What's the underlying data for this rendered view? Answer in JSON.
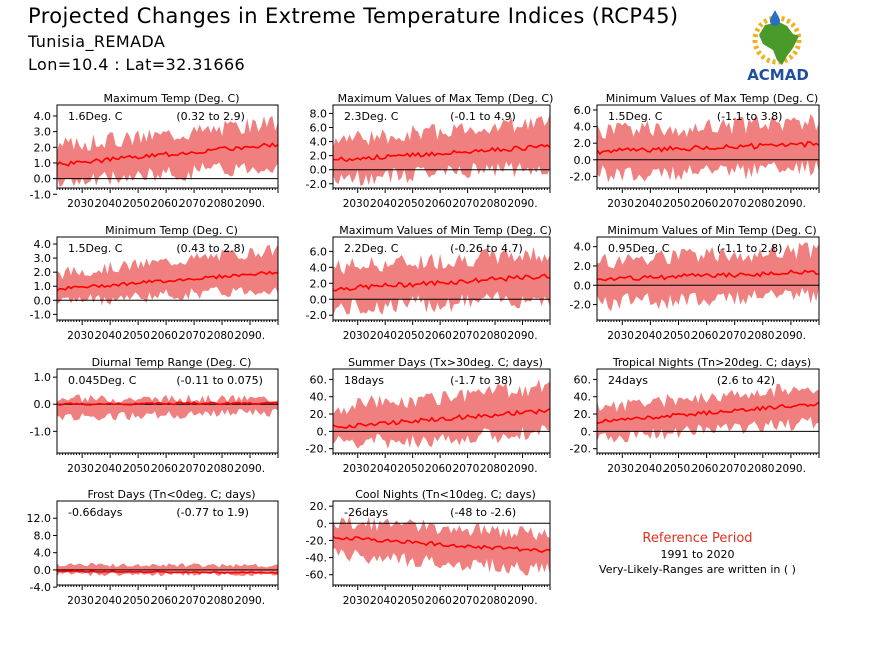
{
  "header": {
    "title": "Projected Changes in Extreme Temperature Indices (RCP45)",
    "region": "Tunisia_REMADA",
    "coords": "Lon=10.4 : Lat=32.31666"
  },
  "logo": {
    "text": "ACMAD",
    "icon": "africa-map-logo",
    "colors": {
      "map": "#4a9a2a",
      "sun": "#f0b020",
      "drop": "#2a70c0",
      "text": "#1f4fa0"
    }
  },
  "colors": {
    "band": "#f08080",
    "line": "#ff0000",
    "zero": "#000000"
  },
  "reference": {
    "title": "Reference Period",
    "period": "1991 to 2020",
    "note": "Very-Likely-Ranges are written in ( )"
  },
  "chart_data": [
    {
      "type": "area",
      "title": "Maximum Temp (Deg. C)",
      "value_label": "1.6Deg. C",
      "range_label": "(0.32 to 2.9)",
      "x_range": [
        2021,
        2100
      ],
      "x_ticks": [
        "2030.",
        "2040.",
        "2050.",
        "2060.",
        "2070.",
        "2080.",
        "2090."
      ],
      "ylim": [
        -0.6,
        4.7
      ],
      "y_ticks": [
        "4.0",
        "3.0",
        "2.0",
        "1.0",
        "0.0",
        "-1.0"
      ],
      "y_tick_values": [
        4,
        3,
        2,
        1,
        0,
        -1
      ],
      "series": [
        {
          "start": 0.9,
          "end": 2.2
        },
        {
          "band_lower_start": -0.3,
          "band_lower_end": 0.9,
          "band_upper_start": 2.1,
          "band_upper_end": 3.6
        }
      ]
    },
    {
      "type": "area",
      "title": "Maximum Values of Max Temp (Deg. C)",
      "value_label": "2.3Deg. C",
      "range_label": "(-0.1 to 4.9)",
      "x_range": [
        2021,
        2100
      ],
      "x_ticks": [
        "2030.",
        "2040.",
        "2050.",
        "2060.",
        "2070.",
        "2080.",
        "2090."
      ],
      "ylim": [
        -2.6,
        9.2
      ],
      "y_ticks": [
        "8.0",
        "6.0",
        "4.0",
        "2.0",
        "0.0",
        "-2.0"
      ],
      "y_tick_values": [
        8,
        6,
        4,
        2,
        0,
        -2
      ],
      "series": [
        {
          "start": 1.4,
          "end": 3.3
        },
        {
          "band_lower_start": -1.3,
          "band_lower_end": 0.3,
          "band_upper_start": 4.2,
          "band_upper_end": 6.8
        }
      ]
    },
    {
      "type": "area",
      "title": "Minimum Values of Max Temp (Deg. C)",
      "value_label": "1.5Deg. C",
      "range_label": "(-1.1 to 3.8)",
      "x_range": [
        2021,
        2100
      ],
      "x_ticks": [
        "2030.",
        "2040.",
        "2050.",
        "2060.",
        "2070.",
        "2080.",
        "2090."
      ],
      "ylim": [
        -3.4,
        6.6
      ],
      "y_ticks": [
        "6.0",
        "4.0",
        "2.0",
        "0.0",
        "-2.0"
      ],
      "y_tick_values": [
        6,
        4,
        2,
        0,
        -2
      ],
      "series": [
        {
          "start": 1.0,
          "end": 1.9
        },
        {
          "band_lower_start": -1.8,
          "band_lower_end": -1.0,
          "band_upper_start": 3.4,
          "band_upper_end": 4.6
        }
      ]
    },
    {
      "type": "area",
      "title": "Minimum Temp (Deg. C)",
      "value_label": "1.5Deg. C",
      "range_label": "(0.43 to 2.8)",
      "x_range": [
        2021,
        2100
      ],
      "x_ticks": [
        "2030.",
        "2040.",
        "2050.",
        "2060.",
        "2070.",
        "2080.",
        "2090."
      ],
      "ylim": [
        -1.4,
        4.5
      ],
      "y_ticks": [
        "4.0",
        "3.0",
        "2.0",
        "1.0",
        "0.0",
        "-1.0"
      ],
      "y_tick_values": [
        4,
        3,
        2,
        1,
        0,
        -1
      ],
      "series": [
        {
          "start": 0.8,
          "end": 2.0
        },
        {
          "band_lower_start": -0.1,
          "band_lower_end": 0.8,
          "band_upper_start": 1.9,
          "band_upper_end": 3.6
        }
      ]
    },
    {
      "type": "area",
      "title": "Maximum Values of Min Temp (Deg. C)",
      "value_label": "2.2Deg. C",
      "range_label": "(-0.26 to 4.7)",
      "x_range": [
        2021,
        2100
      ],
      "x_ticks": [
        "2030.",
        "2040.",
        "2050.",
        "2060.",
        "2070.",
        "2080.",
        "2090."
      ],
      "ylim": [
        -2.6,
        7.8
      ],
      "y_ticks": [
        "6.0",
        "4.0",
        "2.0",
        "0.0",
        "-2.0"
      ],
      "y_tick_values": [
        6,
        4,
        2,
        0,
        -2
      ],
      "series": [
        {
          "start": 1.3,
          "end": 2.9
        },
        {
          "band_lower_start": -1.2,
          "band_lower_end": 0.2,
          "band_upper_start": 4.0,
          "band_upper_end": 5.8
        }
      ]
    },
    {
      "type": "area",
      "title": "Minimum Values of Min Temp (Deg. C)",
      "value_label": "0.95Deg. C",
      "range_label": "(-1.1 to 2.8)",
      "x_range": [
        2021,
        2100
      ],
      "x_ticks": [
        "2030.",
        "2040.",
        "2050.",
        "2060.",
        "2070.",
        "2080.",
        "2090."
      ],
      "ylim": [
        -3.6,
        5.0
      ],
      "y_ticks": [
        "4.0",
        "2.0",
        "0.0",
        "-2.0"
      ],
      "y_tick_values": [
        4,
        2,
        0,
        -2
      ],
      "series": [
        {
          "start": 0.6,
          "end": 1.4
        },
        {
          "band_lower_start": -1.8,
          "band_lower_end": -1.0,
          "band_upper_start": 2.5,
          "band_upper_end": 3.6
        }
      ]
    },
    {
      "type": "area",
      "title": "Diurnal Temp Range (Deg. C)",
      "value_label": "0.045Deg. C",
      "range_label": "(-0.11 to 0.075)",
      "x_range": [
        2021,
        2100
      ],
      "x_ticks": [
        "2030.",
        "2040.",
        "2050.",
        "2060.",
        "2070.",
        "2080.",
        "2090."
      ],
      "ylim": [
        -1.8,
        1.3
      ],
      "y_ticks": [
        "1.0",
        "0.0",
        "-1.0"
      ],
      "y_tick_values": [
        1,
        0,
        -1
      ],
      "series": [
        {
          "start": 0.0,
          "end": 0.05
        },
        {
          "band_lower_start": -0.5,
          "band_lower_end": -0.3,
          "band_upper_start": 0.2,
          "band_upper_end": 0.2
        }
      ]
    },
    {
      "type": "area",
      "title": "Summer Days (Tx>30deg. C; days)",
      "value_label": "18days",
      "range_label": "(-1.7 to 38)",
      "x_range": [
        2021,
        2100
      ],
      "x_ticks": [
        "2030.",
        "2040.",
        "2050.",
        "2060.",
        "2070.",
        "2080.",
        "2090."
      ],
      "ylim": [
        -25,
        72
      ],
      "y_ticks": [
        "60.",
        "40.",
        "20.",
        "0.",
        "-20."
      ],
      "y_tick_values": [
        60,
        40,
        20,
        0,
        -20
      ],
      "series": [
        {
          "start": 5,
          "end": 24
        },
        {
          "band_lower_start": -15,
          "band_lower_end": -2,
          "band_upper_start": 28,
          "band_upper_end": 52
        }
      ]
    },
    {
      "type": "area",
      "title": "Tropical Nights (Tn>20deg. C; days)",
      "value_label": "24days",
      "range_label": "(2.6 to 42)",
      "x_range": [
        2021,
        2100
      ],
      "x_ticks": [
        "2030.",
        "2040.",
        "2050.",
        "2060.",
        "2070.",
        "2080.",
        "2090."
      ],
      "ylim": [
        -25,
        72
      ],
      "y_ticks": [
        "60.",
        "40.",
        "20.",
        "0.",
        "-20."
      ],
      "y_tick_values": [
        60,
        40,
        20,
        0,
        -20
      ],
      "series": [
        {
          "start": 11,
          "end": 32
        },
        {
          "band_lower_start": -8,
          "band_lower_end": 10,
          "band_upper_start": 28,
          "band_upper_end": 52
        }
      ]
    },
    {
      "type": "area",
      "title": "Frost Days (Tn<0deg. C; days)",
      "value_label": "-0.66days",
      "range_label": "(-0.77 to 1.9)",
      "x_range": [
        2021,
        2100
      ],
      "x_ticks": [
        "2030.",
        "2040.",
        "2050.",
        "2060.",
        "2070.",
        "2080.",
        "2090."
      ],
      "ylim": [
        -3.5,
        16
      ],
      "y_ticks": [
        "12.0",
        "8.0",
        "4.0",
        "0.0",
        "-4.0"
      ],
      "y_tick_values": [
        12,
        8,
        4,
        0,
        -4
      ],
      "series": [
        {
          "start": -0.3,
          "end": -0.66
        },
        {
          "band_lower_start": -1.0,
          "band_lower_end": -1.0,
          "band_upper_start": 1.2,
          "band_upper_end": 1.0
        }
      ]
    },
    {
      "type": "area",
      "title": "Cool Nights (Tn<10deg. C; days)",
      "value_label": "-26days",
      "range_label": "(-48 to -2.6)",
      "x_range": [
        2021,
        2100
      ],
      "x_ticks": [
        "2030.",
        "2040.",
        "2050.",
        "2060.",
        "2070.",
        "2080.",
        "2090."
      ],
      "ylim": [
        -72,
        26
      ],
      "y_ticks": [
        "20.",
        "0.",
        "-20.",
        "-40.",
        "-60."
      ],
      "y_tick_values": [
        20,
        0,
        -20,
        -40,
        -60
      ],
      "series": [
        {
          "start": -16,
          "end": -33
        },
        {
          "band_lower_start": -36,
          "band_lower_end": -55,
          "band_upper_start": 2,
          "band_upper_end": -12
        }
      ]
    }
  ]
}
